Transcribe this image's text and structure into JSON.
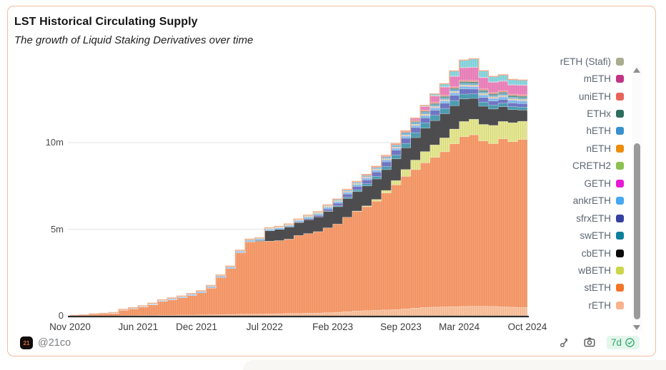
{
  "card": {
    "title": "LST Historical Circulating Supply",
    "subtitle": "The growth of Liquid Staking Derivatives over time",
    "attribution": {
      "handle": "@21co",
      "avatar_text": "21"
    },
    "footer": {
      "refresh_label": "7d"
    }
  },
  "legend": {
    "items": [
      {
        "label": "rETH (Stafi)",
        "color": "#a9ad90"
      },
      {
        "label": "mETH",
        "color": "#c13585"
      },
      {
        "label": "uniETH",
        "color": "#e8635a"
      },
      {
        "label": "ETHx",
        "color": "#2e6e60"
      },
      {
        "label": "hETH",
        "color": "#3890cf"
      },
      {
        "label": "nETH",
        "color": "#ec8d0c"
      },
      {
        "label": "CRETH2",
        "color": "#8cc152"
      },
      {
        "label": "GETH",
        "color": "#e81ad5"
      },
      {
        "label": "ankrETH",
        "color": "#47a7f0"
      },
      {
        "label": "sfrxETH",
        "color": "#3540a0"
      },
      {
        "label": "swETH",
        "color": "#0d7f9b"
      },
      {
        "label": "cbETH",
        "color": "#0a0a0a"
      },
      {
        "label": "wBETH",
        "color": "#ccd64c"
      },
      {
        "label": "stETH",
        "color": "#f4742a"
      },
      {
        "label": "rETH",
        "color": "#f9b28c"
      }
    ]
  },
  "chart_data": {
    "type": "area",
    "stacked": true,
    "unit": "millions of tokens",
    "ylim": [
      0,
      14.6
    ],
    "grid": true,
    "legend_position": "right",
    "note": "stack order is bottom-to-top; topmost cyan band belongs to a series whose legend entry is scrolled out of view above 'rETH (Stafi)'",
    "x_months": [
      "2020-11",
      "2020-12",
      "2021-01",
      "2021-02",
      "2021-03",
      "2021-04",
      "2021-05",
      "2021-06",
      "2021-07",
      "2021-08",
      "2021-09",
      "2021-10",
      "2021-11",
      "2021-12",
      "2022-01",
      "2022-02",
      "2022-03",
      "2022-04",
      "2022-05",
      "2022-06",
      "2022-07",
      "2022-08",
      "2022-09",
      "2022-10",
      "2022-11",
      "2022-12",
      "2023-01",
      "2023-02",
      "2023-03",
      "2023-04",
      "2023-05",
      "2023-06",
      "2023-07",
      "2023-08",
      "2023-09",
      "2023-10",
      "2023-11",
      "2023-12",
      "2024-01",
      "2024-02",
      "2024-03",
      "2024-04",
      "2024-05",
      "2024-06",
      "2024-07",
      "2024-08",
      "2024-09",
      "2024-10"
    ],
    "xticks": [
      {
        "index": 0,
        "label": "Nov 2020"
      },
      {
        "index": 7,
        "label": "Jun 2021"
      },
      {
        "index": 13,
        "label": "Dec 2021"
      },
      {
        "index": 20,
        "label": "Jul 2022"
      },
      {
        "index": 27,
        "label": "Feb 2023"
      },
      {
        "index": 34,
        "label": "Sep 2023"
      },
      {
        "index": 40,
        "label": "Mar 2024"
      },
      {
        "index": 47,
        "label": "Oct 2024"
      }
    ],
    "yticks": [
      {
        "value": 0,
        "label": "0"
      },
      {
        "value": 5,
        "label": "5m"
      },
      {
        "value": 10,
        "label": "10m"
      }
    ],
    "series": [
      {
        "name": "rETH",
        "fill": "#fcc39e",
        "values": [
          0,
          0,
          0,
          0,
          0,
          0.01,
          0.01,
          0.02,
          0.02,
          0.03,
          0.03,
          0.04,
          0.04,
          0.05,
          0.06,
          0.07,
          0.08,
          0.09,
          0.1,
          0.1,
          0.11,
          0.12,
          0.13,
          0.14,
          0.15,
          0.16,
          0.18,
          0.2,
          0.24,
          0.28,
          0.3,
          0.32,
          0.34,
          0.36,
          0.4,
          0.44,
          0.48,
          0.5,
          0.52,
          0.53,
          0.54,
          0.55,
          0.55,
          0.54,
          0.52,
          0.5,
          0.48,
          0.46
        ]
      },
      {
        "name": "stETH",
        "fill": "#f99c6c",
        "values": [
          0.02,
          0.05,
          0.09,
          0.12,
          0.14,
          0.32,
          0.4,
          0.5,
          0.62,
          0.8,
          0.9,
          1.0,
          1.13,
          1.28,
          1.55,
          2.15,
          2.65,
          3.55,
          4.18,
          4.2,
          4.2,
          4.22,
          4.3,
          4.5,
          4.6,
          4.7,
          4.9,
          5.1,
          5.45,
          5.75,
          6.0,
          6.3,
          6.75,
          7.2,
          7.65,
          8.0,
          8.35,
          8.65,
          8.95,
          9.4,
          9.8,
          9.9,
          9.55,
          9.4,
          9.7,
          9.55,
          9.7,
          9.85
        ]
      },
      {
        "name": "wBETH",
        "fill": "#e6e88f",
        "values": [
          0,
          0,
          0,
          0,
          0,
          0,
          0,
          0,
          0,
          0,
          0,
          0,
          0,
          0,
          0,
          0,
          0,
          0,
          0,
          0,
          0,
          0,
          0,
          0,
          0,
          0,
          0,
          0,
          0,
          0.02,
          0.05,
          0.1,
          0.15,
          0.25,
          0.4,
          0.55,
          0.65,
          0.72,
          0.8,
          0.85,
          0.88,
          0.9,
          0.95,
          1.05,
          1.0,
          1.1,
          1.05,
          0.95
        ]
      },
      {
        "name": "cbETH",
        "fill": "#4d4d4f",
        "values": [
          0,
          0,
          0,
          0,
          0,
          0,
          0,
          0,
          0,
          0,
          0,
          0,
          0,
          0,
          0,
          0,
          0,
          0,
          0,
          0.05,
          0.6,
          0.65,
          0.7,
          0.75,
          0.8,
          0.85,
          0.95,
          1.0,
          1.08,
          1.12,
          1.15,
          1.18,
          1.2,
          1.25,
          1.25,
          1.3,
          1.35,
          1.4,
          1.4,
          1.35,
          1.3,
          1.2,
          1.05,
          0.95,
          0.85,
          0.75,
          0.65,
          0.55
        ]
      },
      {
        "name": "swETH",
        "fill": "#4d9fb4",
        "values": [
          0,
          0,
          0,
          0,
          0,
          0,
          0,
          0,
          0,
          0,
          0,
          0,
          0,
          0,
          0,
          0,
          0,
          0,
          0,
          0,
          0,
          0,
          0,
          0,
          0,
          0,
          0.02,
          0.05,
          0.08,
          0.1,
          0.12,
          0.15,
          0.18,
          0.22,
          0.25,
          0.28,
          0.3,
          0.3,
          0.3,
          0.3,
          0.28,
          0.26,
          0.24,
          0.22,
          0.2,
          0.18,
          0.17,
          0.16
        ]
      },
      {
        "name": "sfrxETH",
        "fill": "#7277c8",
        "values": [
          0,
          0,
          0,
          0,
          0,
          0,
          0,
          0,
          0,
          0,
          0,
          0,
          0,
          0,
          0,
          0,
          0,
          0,
          0,
          0,
          0,
          0,
          0,
          0.03,
          0.06,
          0.09,
          0.12,
          0.15,
          0.18,
          0.2,
          0.22,
          0.25,
          0.27,
          0.28,
          0.3,
          0.3,
          0.3,
          0.3,
          0.3,
          0.3,
          0.3,
          0.28,
          0.26,
          0.24,
          0.22,
          0.21,
          0.2,
          0.2
        ]
      },
      {
        "name": "ankrETH",
        "fill": "#7fc0ef",
        "values": [
          0,
          0,
          0.01,
          0.01,
          0.02,
          0.02,
          0.03,
          0.03,
          0.04,
          0.04,
          0.05,
          0.05,
          0.06,
          0.06,
          0.07,
          0.07,
          0.07,
          0.08,
          0.08,
          0.08,
          0.08,
          0.08,
          0.08,
          0.08,
          0.08,
          0.08,
          0.09,
          0.09,
          0.09,
          0.1,
          0.1,
          0.1,
          0.1,
          0.1,
          0.11,
          0.11,
          0.12,
          0.12,
          0.12,
          0.13,
          0.13,
          0.13,
          0.14,
          0.14,
          0.14,
          0.15,
          0.15,
          0.15
        ]
      },
      {
        "name": "GETH",
        "fill": "#ef7ae2",
        "values": [
          0,
          0,
          0,
          0,
          0,
          0,
          0,
          0,
          0.01,
          0.01,
          0.01,
          0.01,
          0.02,
          0.02,
          0.02,
          0.02,
          0.02,
          0.02,
          0.02,
          0.02,
          0.02,
          0.02,
          0.02,
          0.02,
          0.02,
          0.02,
          0.02,
          0.02,
          0.02,
          0.02,
          0.03,
          0.03,
          0.03,
          0.03,
          0.03,
          0.03,
          0.03,
          0.03,
          0.03,
          0.03,
          0.03,
          0.03,
          0.03,
          0.03,
          0.03,
          0.03,
          0.03,
          0.03
        ]
      },
      {
        "name": "CRETH2",
        "fill": "#a9d286",
        "values": [
          0,
          0,
          0.01,
          0.01,
          0.02,
          0.02,
          0.02,
          0.02,
          0.03,
          0.03,
          0.03,
          0.03,
          0.03,
          0.03,
          0.03,
          0.03,
          0.03,
          0.03,
          0.03,
          0.03,
          0.03,
          0.03,
          0.03,
          0.03,
          0.04,
          0.04,
          0.04,
          0.04,
          0.04,
          0.04,
          0.04,
          0.04,
          0.04,
          0.04,
          0.04,
          0.04,
          0.04,
          0.04,
          0.04,
          0.04,
          0.04,
          0.04,
          0.04,
          0.04,
          0.04,
          0.04,
          0.04,
          0.04
        ]
      },
      {
        "name": "nETH",
        "fill": "#f2ae57",
        "values": [
          0,
          0,
          0,
          0,
          0,
          0,
          0,
          0,
          0,
          0,
          0,
          0,
          0,
          0,
          0.01,
          0.01,
          0.01,
          0.01,
          0.01,
          0.01,
          0.02,
          0.02,
          0.02,
          0.02,
          0.02,
          0.02,
          0.02,
          0.02,
          0.02,
          0.02,
          0.02,
          0.02,
          0.02,
          0.02,
          0.02,
          0.02,
          0.03,
          0.03,
          0.03,
          0.03,
          0.03,
          0.03,
          0.03,
          0.03,
          0.03,
          0.03,
          0.03,
          0.03
        ]
      },
      {
        "name": "hETH",
        "fill": "#6fb0de",
        "values": [
          0,
          0,
          0,
          0,
          0,
          0,
          0,
          0,
          0,
          0,
          0,
          0,
          0,
          0,
          0,
          0,
          0,
          0,
          0,
          0,
          0,
          0,
          0,
          0,
          0.02,
          0.03,
          0.04,
          0.05,
          0.06,
          0.06,
          0.07,
          0.07,
          0.08,
          0.08,
          0.09,
          0.09,
          0.09,
          0.09,
          0.09,
          0.09,
          0.09,
          0.09,
          0.08,
          0.08,
          0.08,
          0.08,
          0.08,
          0.08
        ]
      },
      {
        "name": "ETHx",
        "fill": "#5f978b",
        "values": [
          0,
          0,
          0,
          0,
          0,
          0,
          0,
          0,
          0,
          0,
          0,
          0,
          0,
          0,
          0,
          0,
          0,
          0,
          0,
          0,
          0,
          0,
          0,
          0,
          0,
          0,
          0,
          0,
          0,
          0,
          0,
          0,
          0.02,
          0.03,
          0.05,
          0.06,
          0.07,
          0.08,
          0.09,
          0.09,
          0.1,
          0.1,
          0.1,
          0.1,
          0.1,
          0.1,
          0.1,
          0.1
        ]
      },
      {
        "name": "uniETH",
        "fill": "#f29387",
        "values": [
          0,
          0,
          0,
          0,
          0,
          0,
          0,
          0,
          0,
          0,
          0,
          0,
          0,
          0,
          0,
          0,
          0,
          0,
          0,
          0,
          0,
          0,
          0,
          0,
          0,
          0,
          0,
          0,
          0.02,
          0.03,
          0.04,
          0.05,
          0.06,
          0.06,
          0.07,
          0.07,
          0.07,
          0.08,
          0.08,
          0.08,
          0.08,
          0.08,
          0.08,
          0.08,
          0.08,
          0.08,
          0.08,
          0.08
        ]
      },
      {
        "name": "mETH",
        "fill": "#ee85bf",
        "values": [
          0,
          0,
          0,
          0,
          0,
          0,
          0,
          0,
          0,
          0,
          0,
          0,
          0,
          0,
          0,
          0,
          0,
          0,
          0,
          0,
          0,
          0,
          0,
          0,
          0,
          0,
          0,
          0,
          0,
          0,
          0,
          0,
          0,
          0,
          0,
          0.1,
          0.2,
          0.35,
          0.45,
          0.6,
          0.72,
          0.75,
          0.65,
          0.58,
          0.55,
          0.52,
          0.55,
          0.58
        ]
      },
      {
        "name": "rETH (Stafi)",
        "fill": "#b6b99f",
        "values": [
          0,
          0,
          0,
          0,
          0.01,
          0.01,
          0.01,
          0.01,
          0.01,
          0.01,
          0.01,
          0.01,
          0.01,
          0.01,
          0.01,
          0.01,
          0.01,
          0.01,
          0.01,
          0.01,
          0.02,
          0.02,
          0.02,
          0.02,
          0.02,
          0.02,
          0.02,
          0.02,
          0.02,
          0.02,
          0.02,
          0.02,
          0.02,
          0.02,
          0.02,
          0.02,
          0.02,
          0.02,
          0.02,
          0.02,
          0.02,
          0.02,
          0.02,
          0.02,
          0.02,
          0.02,
          0.02,
          0.02
        ]
      },
      {
        "name": "",
        "fill": "#8ad8e2",
        "values": [
          0,
          0,
          0,
          0,
          0,
          0,
          0,
          0,
          0,
          0,
          0,
          0,
          0,
          0,
          0,
          0,
          0,
          0,
          0,
          0,
          0,
          0,
          0,
          0,
          0,
          0,
          0,
          0,
          0,
          0,
          0,
          0,
          0,
          0,
          0,
          0,
          0.05,
          0.1,
          0.18,
          0.3,
          0.42,
          0.48,
          0.38,
          0.32,
          0.35,
          0.3,
          0.28,
          0.3
        ]
      }
    ]
  }
}
